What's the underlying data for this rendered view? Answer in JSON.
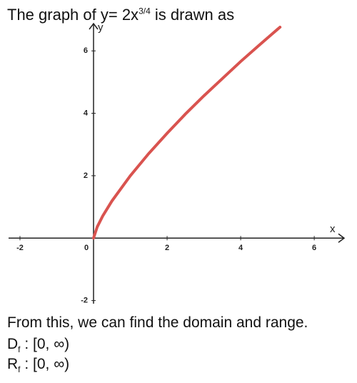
{
  "header": {
    "title": "The graph of y= 2x",
    "title_exponent": "3/4",
    "title_suffix": " is drawn as"
  },
  "chart_data": {
    "type": "line",
    "x": [
      0,
      0.1,
      0.25,
      0.5,
      1,
      1.5,
      2,
      2.5,
      3,
      3.5,
      4,
      4.5,
      5,
      5.07
    ],
    "series": [
      {
        "name": "y= 2x3/4",
        "color": "#d9534f",
        "values": [
          0,
          0.36,
          0.71,
          1.19,
          2,
          2.71,
          3.36,
          3.98,
          4.56,
          5.11,
          5.66,
          6.18,
          6.69,
          6.76
        ]
      }
    ],
    "xlim": [
      -2.31,
      6.58
    ],
    "ylim": [
      -2.1,
      6.6
    ],
    "xticks": [
      -2,
      0,
      2,
      4,
      6
    ],
    "yticks": [
      -2,
      2,
      4,
      6
    ],
    "xlabel": "x",
    "ylabel": "y"
  },
  "footer": {
    "line1": "From this, we can find the domain and range.",
    "domain_letter": "D",
    "domain_sub": "f",
    "domain_value": " : [0, ∞)",
    "range_letter": "R",
    "range_sub": "f",
    "range_value": " : [0, ∞)"
  }
}
